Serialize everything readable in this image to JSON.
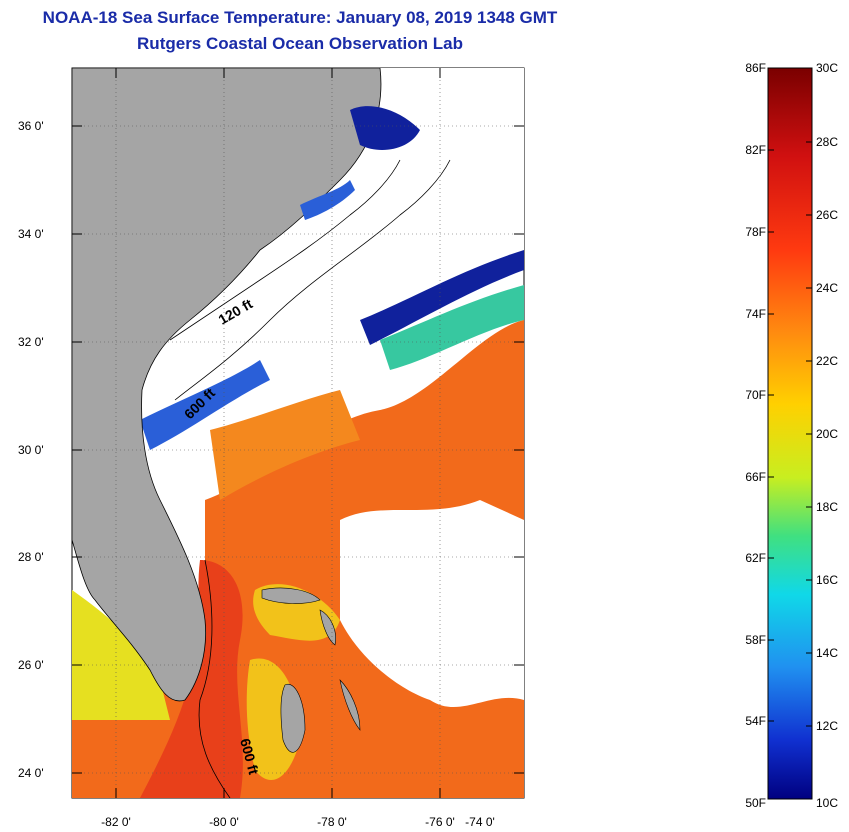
{
  "title": {
    "line1": "NOAA-18 Sea Surface Temperature:  January 08, 2019 1348 GMT",
    "line2": "Rutgers Coastal Ocean Observation Lab"
  },
  "colors": {
    "title": "#1a2ca8",
    "land": "#a5a5a5",
    "cloud": "#ffffff",
    "warm": "#f26a1b",
    "hot": "#e8401a",
    "cool": "#2a5fd8",
    "cold": "#10219c"
  },
  "map": {
    "lat_labels": [
      "36 0'",
      "34 0'",
      "32 0'",
      "30 0'",
      "28 0'",
      "26 0'",
      "24 0'"
    ],
    "lon_labels": [
      "-82 0'",
      "-80 0'",
      "-78 0'",
      "-76 0'",
      "-74 0'"
    ],
    "contours": [
      "120 ft",
      "600 ft",
      "600 ft"
    ]
  },
  "colorbar": {
    "f_labels": [
      "86F",
      "82F",
      "78F",
      "74F",
      "70F",
      "66F",
      "62F",
      "58F",
      "54F",
      "50F"
    ],
    "c_labels": [
      "30C",
      "28C",
      "26C",
      "24C",
      "22C",
      "20C",
      "18C",
      "16C",
      "14C",
      "12C",
      "10C"
    ]
  }
}
